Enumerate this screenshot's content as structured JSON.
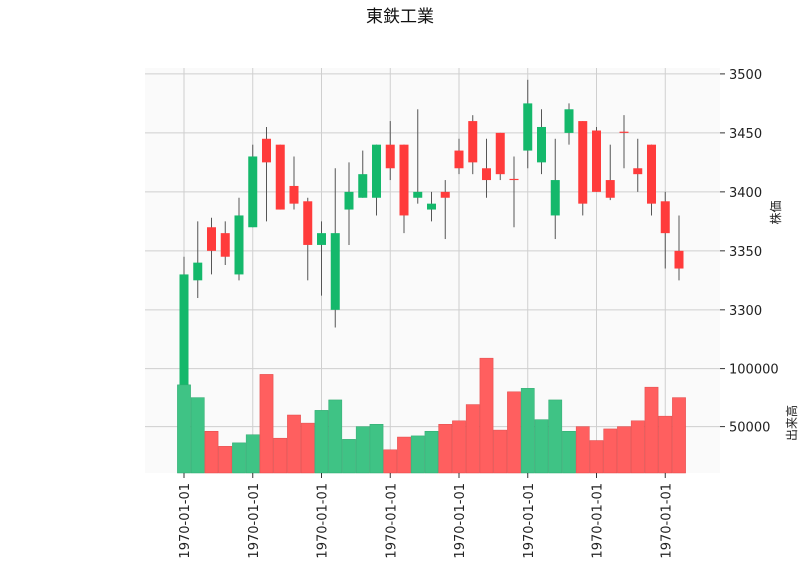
{
  "title": "東鉄工業",
  "colors": {
    "up": "#ff3b3b",
    "down": "#14b86b",
    "vol_up": "#ff5f5f",
    "vol_down": "#3fc385",
    "panel_bg": "#fafafa",
    "grid": "#cfcfcf",
    "wick": "#555555"
  },
  "chart_data": [
    {
      "type": "candlestick",
      "ylabel": "株価",
      "ylim": [
        3260,
        3505
      ],
      "yticks": [
        3300,
        3350,
        3400,
        3450,
        3500
      ],
      "grid": true,
      "y_axis_side": "right",
      "up_color_meaning": "close > open (red)",
      "candles": [
        {
          "o": 3330,
          "h": 3345,
          "l": 3215,
          "c": 3215
        },
        {
          "o": 3340,
          "h": 3375,
          "l": 3310,
          "c": 3325
        },
        {
          "o": 3350,
          "h": 3378,
          "l": 3330,
          "c": 3370
        },
        {
          "o": 3345,
          "h": 3375,
          "l": 3338,
          "c": 3365
        },
        {
          "o": 3380,
          "h": 3395,
          "l": 3325,
          "c": 3330
        },
        {
          "o": 3430,
          "h": 3440,
          "l": 3370,
          "c": 3370
        },
        {
          "o": 3425,
          "h": 3455,
          "l": 3375,
          "c": 3445
        },
        {
          "o": 3385,
          "h": 3440,
          "l": 3385,
          "c": 3440
        },
        {
          "o": 3390,
          "h": 3430,
          "l": 3385,
          "c": 3405
        },
        {
          "o": 3355,
          "h": 3395,
          "l": 3325,
          "c": 3392
        },
        {
          "o": 3365,
          "h": 3375,
          "l": 3312,
          "c": 3355
        },
        {
          "o": 3365,
          "h": 3420,
          "l": 3285,
          "c": 3300
        },
        {
          "o": 3400,
          "h": 3425,
          "l": 3355,
          "c": 3385
        },
        {
          "o": 3415,
          "h": 3435,
          "l": 3395,
          "c": 3395
        },
        {
          "o": 3440,
          "h": 3440,
          "l": 3380,
          "c": 3395
        },
        {
          "o": 3420,
          "h": 3460,
          "l": 3410,
          "c": 3440
        },
        {
          "o": 3380,
          "h": 3440,
          "l": 3365,
          "c": 3440
        },
        {
          "o": 3400,
          "h": 3470,
          "l": 3390,
          "c": 3395
        },
        {
          "o": 3390,
          "h": 3400,
          "l": 3375,
          "c": 3385
        },
        {
          "o": 3395,
          "h": 3410,
          "l": 3360,
          "c": 3400
        },
        {
          "o": 3420,
          "h": 3445,
          "l": 3415,
          "c": 3435
        },
        {
          "o": 3425,
          "h": 3465,
          "l": 3415,
          "c": 3460
        },
        {
          "o": 3410,
          "h": 3445,
          "l": 3395,
          "c": 3420
        },
        {
          "o": 3415,
          "h": 3450,
          "l": 3410,
          "c": 3450
        },
        {
          "o": 3410,
          "h": 3430,
          "l": 3370,
          "c": 3411
        },
        {
          "o": 3475,
          "h": 3495,
          "l": 3420,
          "c": 3435
        },
        {
          "o": 3455,
          "h": 3470,
          "l": 3415,
          "c": 3425
        },
        {
          "o": 3410,
          "h": 3445,
          "l": 3360,
          "c": 3380
        },
        {
          "o": 3470,
          "h": 3475,
          "l": 3440,
          "c": 3450
        },
        {
          "o": 3390,
          "h": 3460,
          "l": 3380,
          "c": 3460
        },
        {
          "o": 3400,
          "h": 3455,
          "l": 3400,
          "c": 3452
        },
        {
          "o": 3395,
          "h": 3440,
          "l": 3393,
          "c": 3410
        },
        {
          "o": 3450,
          "h": 3465,
          "l": 3420,
          "c": 3451
        },
        {
          "o": 3415,
          "h": 3445,
          "l": 3400,
          "c": 3420
        },
        {
          "o": 3390,
          "h": 3440,
          "l": 3380,
          "c": 3440
        },
        {
          "o": 3365,
          "h": 3400,
          "l": 3335,
          "c": 3392
        },
        {
          "o": 3335,
          "h": 3380,
          "l": 3325,
          "c": 3350
        }
      ]
    },
    {
      "type": "bar",
      "ylabel": "出来高",
      "ylim": [
        10000,
        110000
      ],
      "yticks": [
        50000,
        100000
      ],
      "grid": true,
      "values": [
        86000,
        75000,
        46000,
        33000,
        36000,
        43000,
        95000,
        40000,
        60000,
        53000,
        64000,
        73000,
        39000,
        50000,
        52000,
        30000,
        41000,
        42000,
        46000,
        52000,
        55000,
        69000,
        109000,
        47000,
        80000,
        83000,
        56000,
        73000,
        46000,
        50000,
        38000,
        48000,
        50000,
        55000,
        84000,
        59000,
        75000
      ]
    }
  ],
  "x_tick_labels": [
    "1970-01-01",
    "1970-01-01",
    "1970-01-01",
    "1970-01-01",
    "1970-01-01",
    "1970-01-01",
    "1970-01-01",
    "1970-01-01"
  ],
  "x_tick_indices": [
    0,
    5,
    10,
    15,
    20,
    25,
    30,
    35
  ]
}
